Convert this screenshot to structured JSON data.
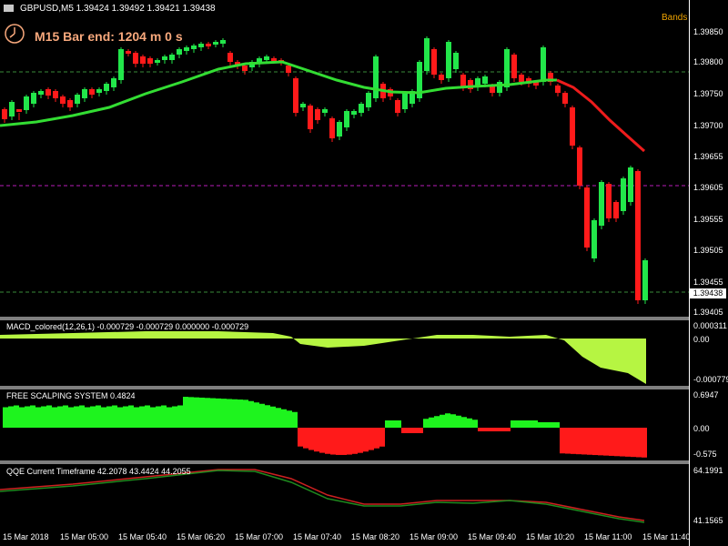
{
  "header": {
    "symbol_info": "GBPUSD,M5  1.39424 1.39492 1.39421 1.39438",
    "timer_text": "M15 Bar end: 1204 m 0 s",
    "bands_label": "Bands"
  },
  "price_axis": {
    "labels": [
      "1.39850",
      "1.39800",
      "1.39750",
      "1.39700",
      "1.39655",
      "1.39605",
      "1.39555",
      "1.39505",
      "1.39455",
      "1.39405"
    ],
    "current_price": "1.39438"
  },
  "macd": {
    "title": "MACD_colored(12,26,1) -0.000729 -0.000729 0.000000 -0.000729",
    "axis": [
      "0.000311",
      "0.00",
      "-0.000779"
    ]
  },
  "fss": {
    "title": "FREE SCALPING SYSTEM  0.4824",
    "axis": [
      "0.6947",
      "0.00",
      "-0.575"
    ]
  },
  "qqe": {
    "title": "QQE Current Timeframe 42.2078 43.4424 44.2055",
    "axis": [
      "64.1991",
      "41.1565"
    ]
  },
  "time_axis": [
    "15 Mar 2018",
    "15 Mar 05:00",
    "15 Mar 05:40",
    "15 Mar 06:20",
    "15 Mar 07:00",
    "15 Mar 07:40",
    "15 Mar 08:20",
    "15 Mar 09:00",
    "15 Mar 09:40",
    "15 Mar 10:20",
    "15 Mar 11:00",
    "15 Mar 11:40"
  ],
  "colors": {
    "bull": "#22e64a",
    "bear": "#ff1a1a",
    "ma_up": "#33dd33",
    "ma_down": "#ee1c1c",
    "macd_fill": "#b6f542",
    "fss_pos": "#1ef41e",
    "fss_neg": "#ff1a1a",
    "timer": "#f7a87c",
    "bands": "#f0a400"
  }
}
